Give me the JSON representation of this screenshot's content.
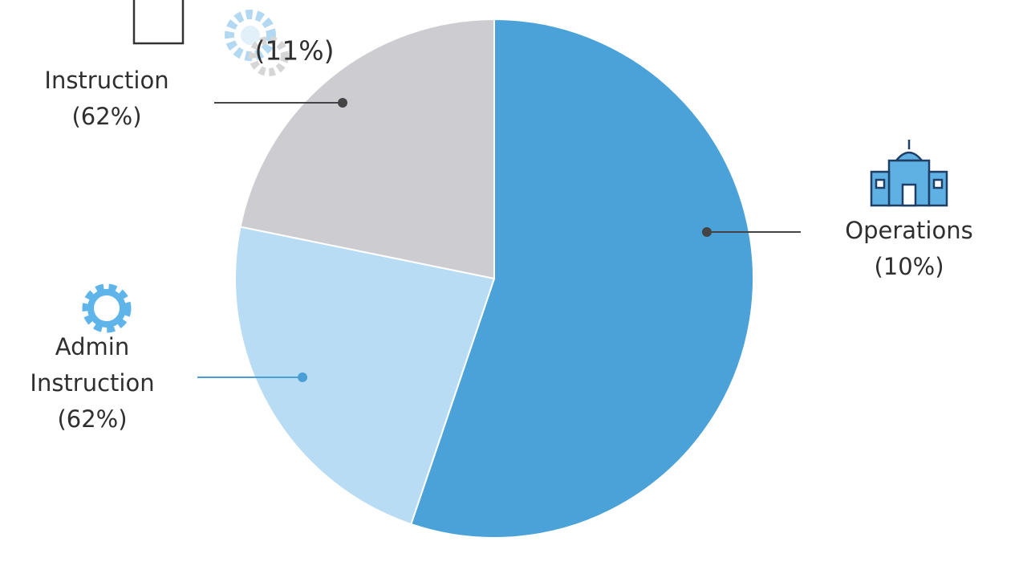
{
  "chart_data": {
    "type": "pie",
    "values": [
      55.2,
      23.0,
      21.8
    ],
    "colors": [
      "#4aa2d9",
      "#b8dcf4",
      "#cdcdd1"
    ],
    "labels": [
      [
        "Operations",
        "(10%)"
      ],
      [
        "Admin",
        "Instruction",
        "(62%)"
      ],
      [
        "Instruction",
        "(62%)"
      ]
    ],
    "annotations": [
      [
        "(11%)"
      ]
    ]
  }
}
